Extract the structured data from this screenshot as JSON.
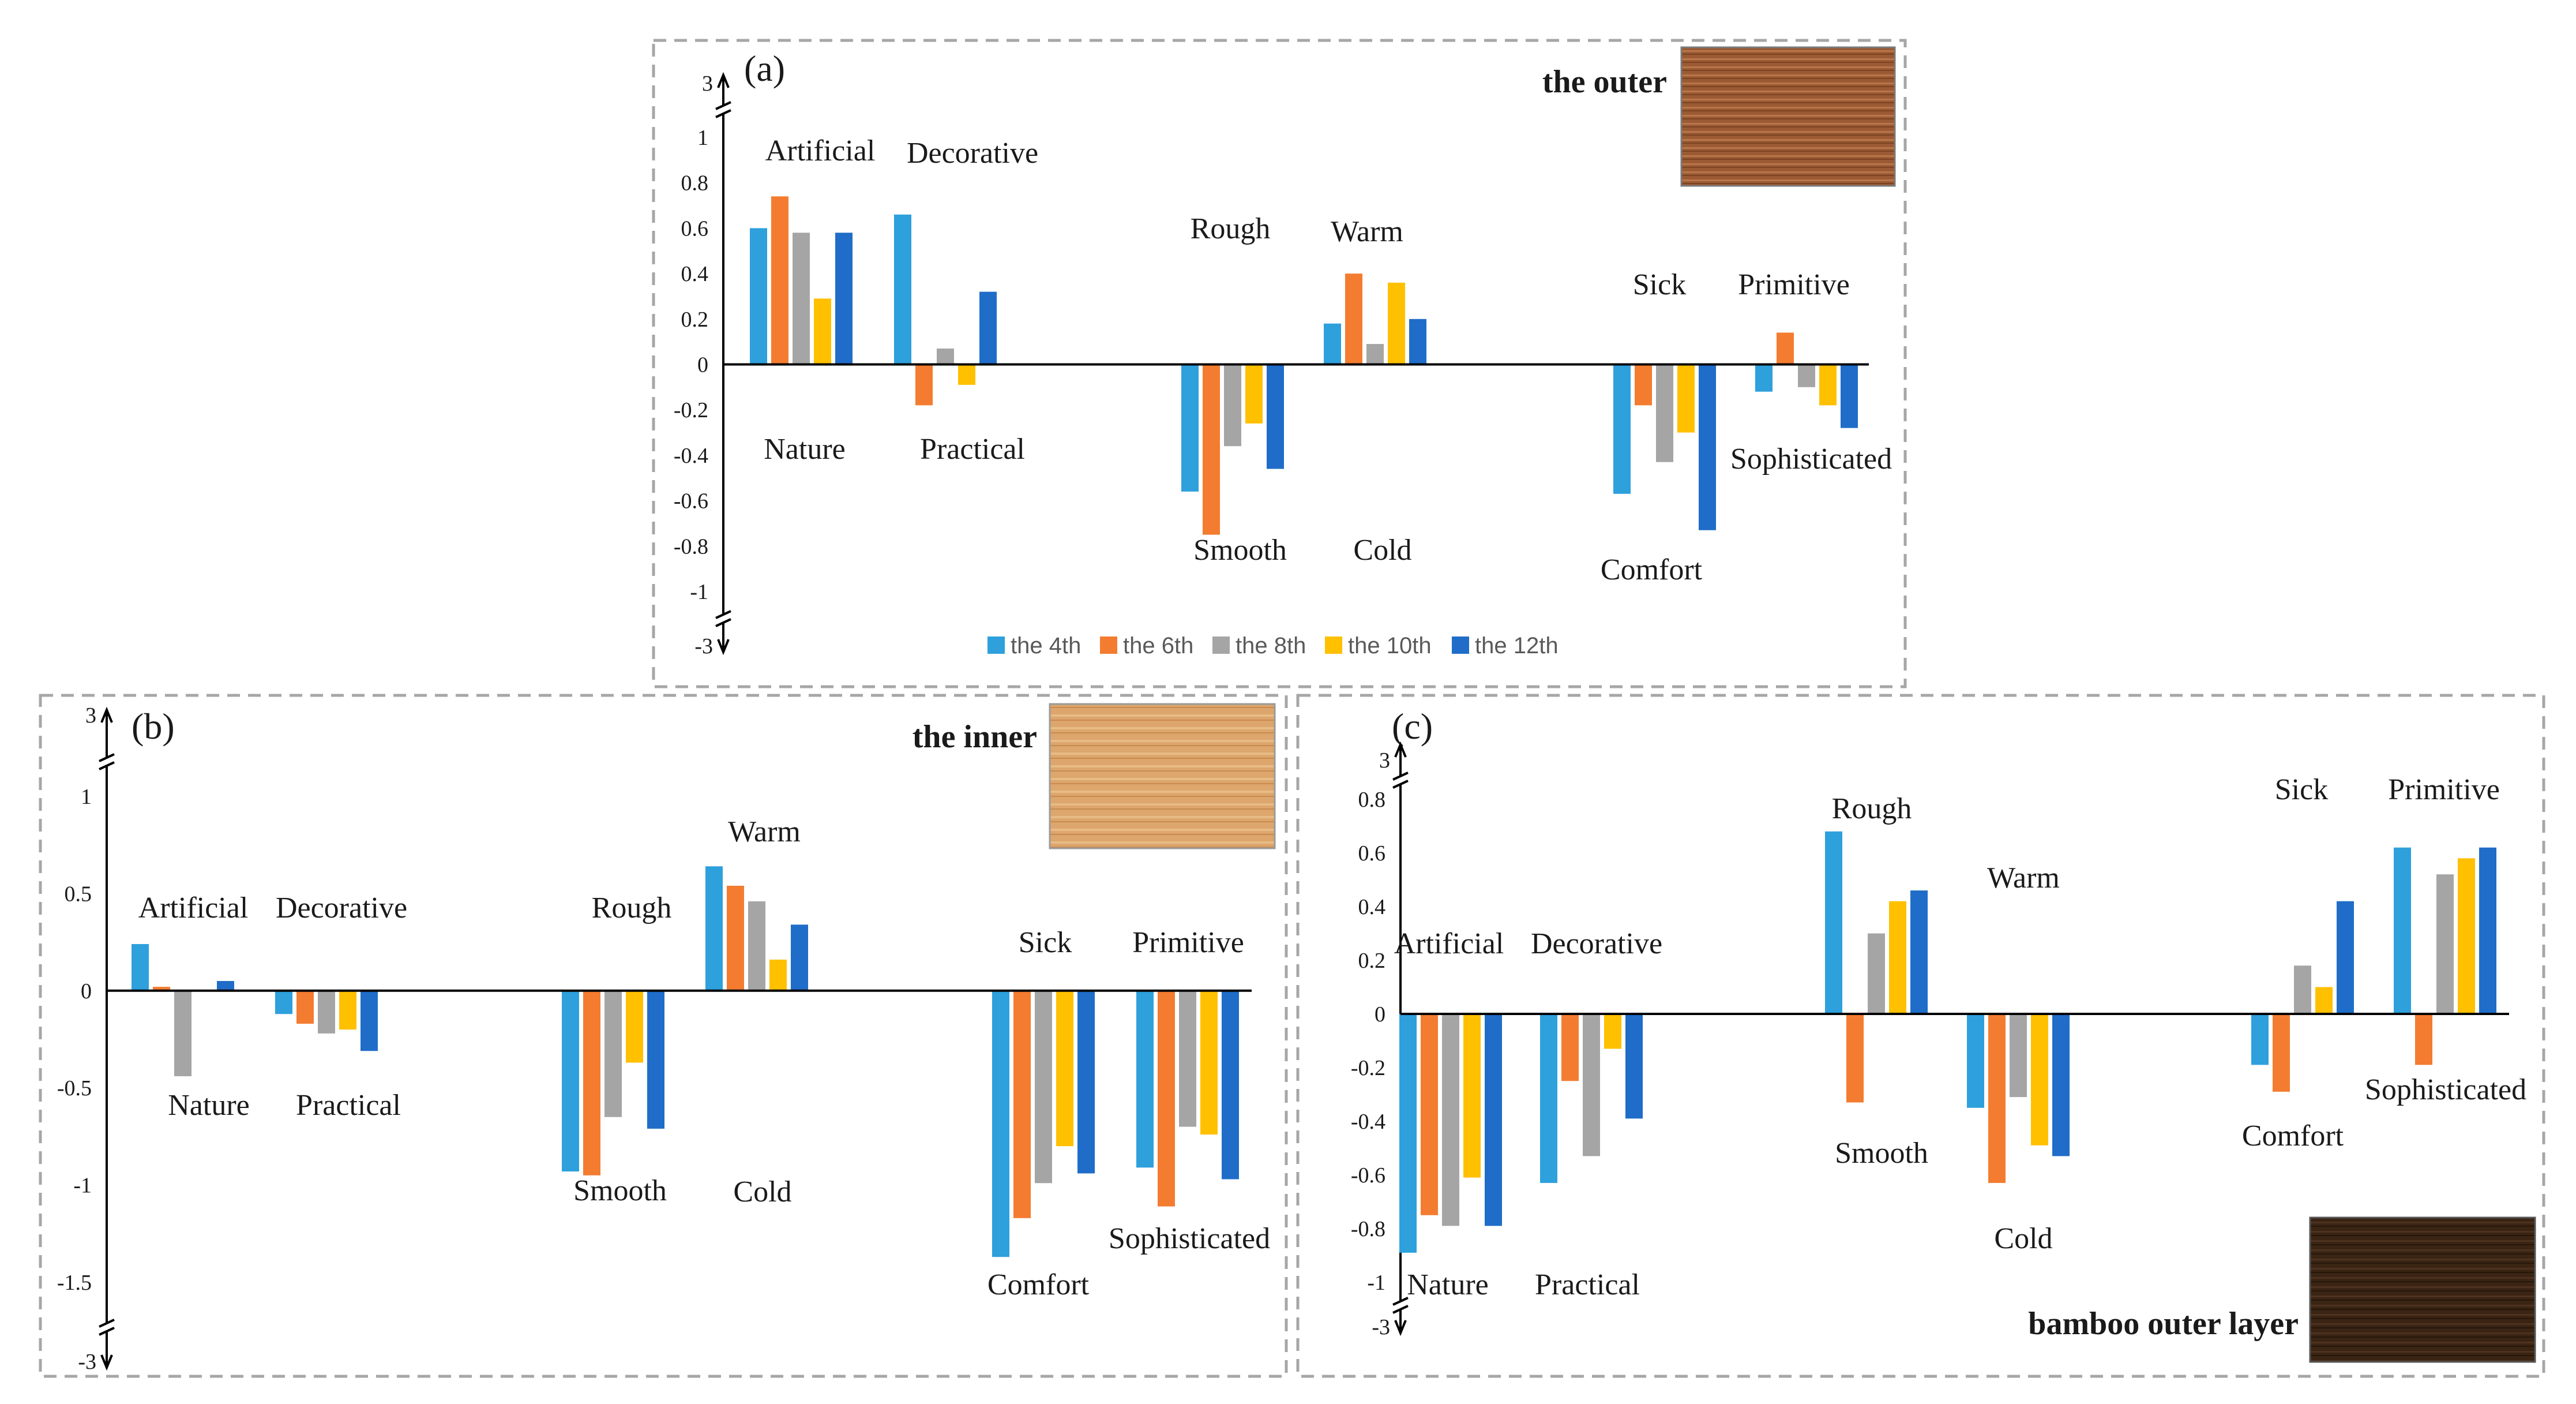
{
  "legend": {
    "items": [
      {
        "label": "the 4th",
        "color": "#2ea0dc"
      },
      {
        "label": "the 6th",
        "color": "#f47c30"
      },
      {
        "label": "the 8th",
        "color": "#a5a5a5"
      },
      {
        "label": "the 10th",
        "color": "#ffc000"
      },
      {
        "label": "the 12th",
        "color": "#1f6dc8"
      }
    ]
  },
  "chart_data": [
    {
      "type": "bar",
      "panel": "(a)",
      "photo_label": "the outer",
      "photo_color": "#9b5a33",
      "axis_break_labels": {
        "top": "3",
        "bottom": "-3"
      },
      "ylim": [
        -1,
        1
      ],
      "yticks": [
        "-1",
        "-0.8",
        "-0.6",
        "-0.4",
        "-0.2",
        "0",
        "0.2",
        "0.4",
        "0.6",
        "0.8",
        "1"
      ],
      "ytick_values": [
        -1,
        -0.8,
        -0.6,
        -0.4,
        -0.2,
        0,
        0.2,
        0.4,
        0.6,
        0.8,
        1
      ],
      "categories": [
        "Artificial / Nature",
        "Decorative / Practical",
        "Rough / Smooth",
        "Warm / Cold",
        "Sick / Comfort",
        "Primitive / Sophisticated"
      ],
      "upper_labels": [
        "Artificial",
        "Decorative",
        "Rough",
        "Warm",
        "Sick",
        "Primitive"
      ],
      "lower_labels": [
        "Nature",
        "Practical",
        "Smooth",
        "Cold",
        "Comfort",
        "Sophisticated"
      ],
      "series": [
        {
          "name": "the 4th",
          "values": [
            0.6,
            0.66,
            -0.56,
            0.18,
            -0.57,
            -0.12
          ]
        },
        {
          "name": "the 6th",
          "values": [
            0.74,
            -0.18,
            -0.75,
            0.4,
            -0.18,
            0.14
          ]
        },
        {
          "name": "the 8th",
          "values": [
            0.58,
            0.07,
            -0.36,
            0.09,
            -0.43,
            -0.1
          ]
        },
        {
          "name": "the 10th",
          "values": [
            0.29,
            -0.09,
            -0.26,
            0.36,
            -0.3,
            -0.18
          ]
        },
        {
          "name": "the 12th",
          "values": [
            0.58,
            0.32,
            -0.46,
            0.2,
            -0.73,
            -0.28
          ]
        }
      ]
    },
    {
      "type": "bar",
      "panel": "(b)",
      "photo_label": "the inner",
      "photo_color": "#dca66c",
      "axis_break_labels": {
        "top": "3",
        "bottom": "-3"
      },
      "ylim": [
        -1.5,
        1
      ],
      "yticks": [
        "-1.5",
        "-1",
        "-0.5",
        "0",
        "0.5",
        "1"
      ],
      "ytick_values": [
        -1.5,
        -1,
        -0.5,
        0,
        0.5,
        1
      ],
      "categories": [
        "Artificial / Nature",
        "Decorative / Practical",
        "Rough / Smooth",
        "Warm / Cold",
        "Sick / Comfort",
        "Primitive / Sophisticated"
      ],
      "upper_labels": [
        "Artificial",
        "Decorative",
        "Rough",
        "Warm",
        "Sick",
        "Primitive"
      ],
      "lower_labels": [
        "Nature",
        "Practical",
        "Smooth",
        "Cold",
        "Comfort",
        "Sophisticated"
      ],
      "series": [
        {
          "name": "the 4th",
          "values": [
            0.24,
            -0.12,
            -0.93,
            0.64,
            -1.37,
            -0.91
          ]
        },
        {
          "name": "the 6th",
          "values": [
            0.02,
            -0.17,
            -0.95,
            0.54,
            -1.17,
            -1.11
          ]
        },
        {
          "name": "the 8th",
          "values": [
            -0.44,
            -0.22,
            -0.65,
            0.46,
            -0.99,
            -0.7
          ]
        },
        {
          "name": "the 10th",
          "values": [
            0.0,
            -0.2,
            -0.37,
            0.16,
            -0.8,
            -0.74
          ]
        },
        {
          "name": "the 12th",
          "values": [
            0.05,
            -0.31,
            -0.71,
            0.34,
            -0.94,
            -0.97
          ]
        }
      ]
    },
    {
      "type": "bar",
      "panel": "(c)",
      "photo_label": "bamboo outer layer",
      "photo_color": "#3a2414",
      "axis_break_labels": {
        "top": "3",
        "bottom": "-3"
      },
      "ylim": [
        -1,
        0.8
      ],
      "yticks": [
        "-1",
        "-0.8",
        "-0.6",
        "-0.4",
        "-0.2",
        "0",
        "0.2",
        "0.4",
        "0.6",
        "0.8"
      ],
      "ytick_values": [
        -1,
        -0.8,
        -0.6,
        -0.4,
        -0.2,
        0,
        0.2,
        0.4,
        0.6,
        0.8
      ],
      "categories": [
        "Artificial / Nature",
        "Decorative / Practical",
        "Rough / Smooth",
        "Warm / Cold",
        "Sick / Comfort",
        "Primitive / Sophisticated"
      ],
      "upper_labels": [
        "Artificial",
        "Decorative",
        "Rough",
        "Warm",
        "Sick",
        "Primitive"
      ],
      "lower_labels": [
        "Nature",
        "Practical",
        "Smooth",
        "Cold",
        "Comfort",
        "Sophisticated"
      ],
      "series": [
        {
          "name": "the 4th",
          "values": [
            -0.89,
            -0.63,
            0.68,
            -0.35,
            -0.19,
            0.62
          ]
        },
        {
          "name": "the 6th",
          "values": [
            -0.75,
            -0.25,
            -0.33,
            -0.63,
            -0.29,
            -0.19
          ]
        },
        {
          "name": "the 8th",
          "values": [
            -0.79,
            -0.53,
            0.3,
            -0.31,
            0.18,
            0.52
          ]
        },
        {
          "name": "the 10th",
          "values": [
            -0.61,
            -0.13,
            0.42,
            -0.49,
            0.1,
            0.58
          ]
        },
        {
          "name": "the 12th",
          "values": [
            -0.79,
            -0.39,
            0.46,
            -0.53,
            0.42,
            0.62
          ]
        }
      ]
    }
  ]
}
